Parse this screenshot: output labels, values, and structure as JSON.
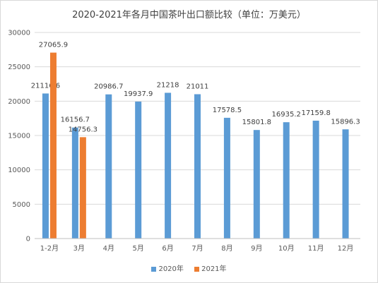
{
  "chart_data": {
    "type": "bar",
    "title": "2020-2021年各月中国茶叶出口额比较（单位：万美元）",
    "categories": [
      "1-2月",
      "3月",
      "4月",
      "5月",
      "6月",
      "7月",
      "8月",
      "9月",
      "10月",
      "11月",
      "12月"
    ],
    "series": [
      {
        "name": "2020年",
        "color": "#5b9bd5",
        "values": [
          21116.6,
          16156.7,
          20986.7,
          19937.9,
          21218,
          21011,
          17578.5,
          15801.8,
          16935.2,
          17159.8,
          15896.3
        ],
        "labels": [
          "21116.6",
          "16156.7",
          "20986.7",
          "19937.9",
          "21218",
          "21011",
          "17578.5",
          "15801.8",
          "16935.2",
          "17159.8",
          "15896.3"
        ]
      },
      {
        "name": "2021年",
        "color": "#ed7d31",
        "values": [
          27065.9,
          14756.3,
          null,
          null,
          null,
          null,
          null,
          null,
          null,
          null,
          null
        ],
        "labels": [
          "27065.9",
          "14756.3",
          "",
          "",
          "",
          "",
          "",
          "",
          "",
          "",
          ""
        ]
      }
    ],
    "ylim": [
      0,
      30000
    ],
    "yticks": [
      "0",
      "5000",
      "10000",
      "15000",
      "20000",
      "25000",
      "30000"
    ],
    "grid": true,
    "legend_position": "bottom"
  }
}
